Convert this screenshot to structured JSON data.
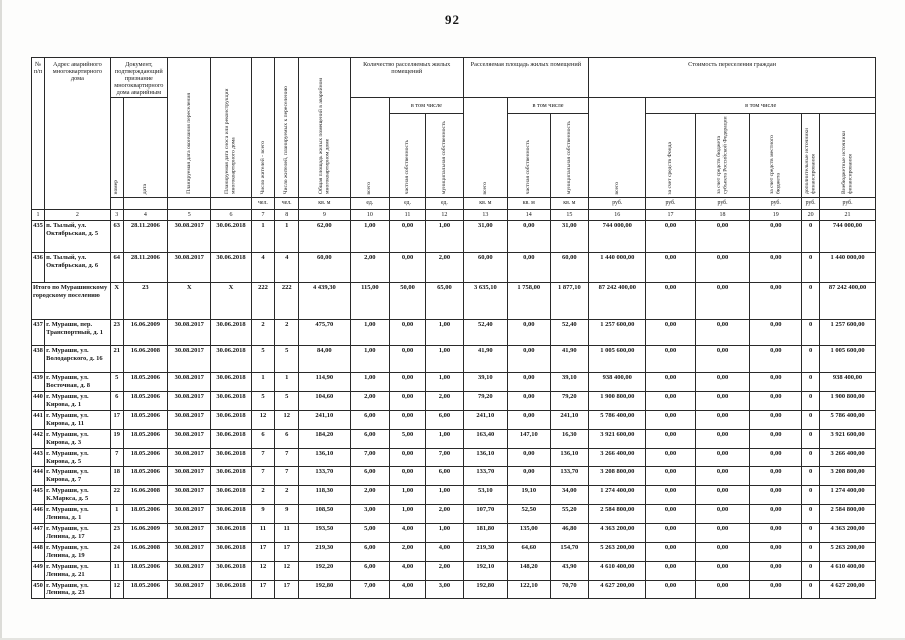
{
  "page": {
    "number": "92"
  },
  "table": {
    "header": {
      "num": "№ п/п",
      "address": "Адрес аварийного многоквартирного дома",
      "doc": "Документ, подтверждающий признание многоквартирного дома аварийным",
      "doc_no": "номер",
      "doc_date": "дата",
      "resettle_date": "Планируемая дата окончания переселения",
      "demolition_date": "Планируемая дата сноса или реконструкции многоквартирного дома",
      "residents": "Число жителей - всего",
      "residents_resettle": "Число жителей, планируемых к переселению",
      "house_area": "Общая площадь жилых помещений в аварийном многоквартирном доме",
      "units_group": "Количество расселяемых жилых помещений",
      "area_group": "Расселяемая площадь жилых помещений",
      "cost_group": "Стоимость переселения граждан",
      "total": "всего",
      "including": "в том числе",
      "private": "частная собственность",
      "municipal": "муниципальная собственность",
      "fund": "за счет средств Фонда",
      "region": "за счет средств бюджета субъекта Российской Федерации",
      "local": "за счет средств местного бюджета",
      "extra": "дополнительные источники финансирования",
      "offbudget": "Внебюджетные источники финансирования"
    },
    "units_row": [
      "",
      "",
      "",
      "",
      "чел.",
      "чел.",
      "кв. м",
      "ед.",
      "ед.",
      "ед.",
      "кв. м",
      "кв. м",
      "кв. м",
      "руб.",
      "руб.",
      "руб.",
      "руб.",
      "руб.",
      "руб."
    ],
    "col_numbers": [
      "1",
      "2",
      "3",
      "4",
      "5",
      "6",
      "7",
      "8",
      "9",
      "10",
      "11",
      "12",
      "13",
      "14",
      "15",
      "16",
      "17",
      "18",
      "19",
      "20",
      "21"
    ],
    "rows": [
      {
        "num": "435",
        "address": "п. Тылый, ул. Октябрьская, д. 5",
        "doc_no": "63",
        "doc_date": "28.11.2006",
        "resettle_date": "30.08.2017",
        "demolition_date": "30.06.2018",
        "residents": "1",
        "residents_resettle": "1",
        "house_area": "62,00",
        "units_total": "1,00",
        "units_private": "0,00",
        "units_municipal": "1,00",
        "area_total": "31,00",
        "area_private": "0,00",
        "area_municipal": "31,00",
        "cost_total": "744 000,00",
        "cost_fund": "0,00",
        "cost_region": "0,00",
        "cost_local": "0,00",
        "cost_extra": "0",
        "cost_offbudget": "744 000,00"
      },
      {
        "num": "436",
        "address": "п. Тылый, ул. Октябрьская, д. 6",
        "doc_no": "64",
        "doc_date": "28.11.2006",
        "resettle_date": "30.08.2017",
        "demolition_date": "30.06.2018",
        "residents": "4",
        "residents_resettle": "4",
        "house_area": "60,00",
        "units_total": "2,00",
        "units_private": "0,00",
        "units_municipal": "2,00",
        "area_total": "60,00",
        "area_private": "0,00",
        "area_municipal": "60,00",
        "cost_total": "1 440 000,00",
        "cost_fund": "0,00",
        "cost_region": "0,00",
        "cost_local": "0,00",
        "cost_extra": "0",
        "cost_offbudget": "1 440 000,00"
      },
      {
        "label": "Итого по Мурашинскому городскому поселению",
        "doc_no": "X",
        "doc_date": "23",
        "resettle_date": "X",
        "demolition_date": "X",
        "residents": "222",
        "residents_resettle": "222",
        "house_area": "4 439,30",
        "units_total": "115,00",
        "units_private": "50,00",
        "units_municipal": "65,00",
        "area_total": "3 635,10",
        "area_private": "1 758,00",
        "area_municipal": "1 877,10",
        "cost_total": "87 242 400,00",
        "cost_fund": "0,00",
        "cost_region": "0,00",
        "cost_local": "0,00",
        "cost_extra": "0",
        "cost_offbudget": "87 242 400,00"
      },
      {
        "num": "437",
        "address": "г. Мураши, пер. Транспортный, д. 1",
        "doc_no": "23",
        "doc_date": "16.06.2009",
        "resettle_date": "30.08.2017",
        "demolition_date": "30.06.2018",
        "residents": "2",
        "residents_resettle": "2",
        "house_area": "475,70",
        "units_total": "1,00",
        "units_private": "0,00",
        "units_municipal": "1,00",
        "area_total": "52,40",
        "area_private": "0,00",
        "area_municipal": "52,40",
        "cost_total": "1 257 600,00",
        "cost_fund": "0,00",
        "cost_region": "0,00",
        "cost_local": "0,00",
        "cost_extra": "0",
        "cost_offbudget": "1 257 600,00"
      },
      {
        "num": "438",
        "address": "г. Мураши, ул. Володарского, д. 16",
        "doc_no": "21",
        "doc_date": "16.06.2008",
        "resettle_date": "30.08.2017",
        "demolition_date": "30.06.2018",
        "residents": "5",
        "residents_resettle": "5",
        "house_area": "84,00",
        "units_total": "1,00",
        "units_private": "0,00",
        "units_municipal": "1,00",
        "area_total": "41,90",
        "area_private": "0,00",
        "area_municipal": "41,90",
        "cost_total": "1 005 600,00",
        "cost_fund": "0,00",
        "cost_region": "0,00",
        "cost_local": "0,00",
        "cost_extra": "0",
        "cost_offbudget": "1 005 600,00"
      },
      {
        "num": "439",
        "address": "г. Мураши, ул. Восточная, д. 8",
        "doc_no": "5",
        "doc_date": "18.05.2006",
        "resettle_date": "30.08.2017",
        "demolition_date": "30.06.2018",
        "residents": "1",
        "residents_resettle": "1",
        "house_area": "114,90",
        "units_total": "1,00",
        "units_private": "0,00",
        "units_municipal": "1,00",
        "area_total": "39,10",
        "area_private": "0,00",
        "area_municipal": "39,10",
        "cost_total": "938 400,00",
        "cost_fund": "0,00",
        "cost_region": "0,00",
        "cost_local": "0,00",
        "cost_extra": "0",
        "cost_offbudget": "938 400,00"
      },
      {
        "num": "440",
        "address": "г. Мураши, ул. Кирова, д. 1",
        "doc_no": "6",
        "doc_date": "18.05.2006",
        "resettle_date": "30.08.2017",
        "demolition_date": "30.06.2018",
        "residents": "5",
        "residents_resettle": "5",
        "house_area": "104,60",
        "units_total": "2,00",
        "units_private": "0,00",
        "units_municipal": "2,00",
        "area_total": "79,20",
        "area_private": "0,00",
        "area_municipal": "79,20",
        "cost_total": "1 900 800,00",
        "cost_fund": "0,00",
        "cost_region": "0,00",
        "cost_local": "0,00",
        "cost_extra": "0",
        "cost_offbudget": "1 900 800,00"
      },
      {
        "num": "441",
        "address": "г. Мураши, ул. Кирова, д. 11",
        "doc_no": "17",
        "doc_date": "18.05.2006",
        "resettle_date": "30.08.2017",
        "demolition_date": "30.06.2018",
        "residents": "12",
        "residents_resettle": "12",
        "house_area": "241,10",
        "units_total": "6,00",
        "units_private": "0,00",
        "units_municipal": "6,00",
        "area_total": "241,10",
        "area_private": "0,00",
        "area_municipal": "241,10",
        "cost_total": "5 786 400,00",
        "cost_fund": "0,00",
        "cost_region": "0,00",
        "cost_local": "0,00",
        "cost_extra": "0",
        "cost_offbudget": "5 786 400,00"
      },
      {
        "num": "442",
        "address": "г. Мураши, ул. Кирова, д. 3",
        "doc_no": "19",
        "doc_date": "18.05.2006",
        "resettle_date": "30.08.2017",
        "demolition_date": "30.06.2018",
        "residents": "6",
        "residents_resettle": "6",
        "house_area": "184,20",
        "units_total": "6,00",
        "units_private": "5,00",
        "units_municipal": "1,00",
        "area_total": "163,40",
        "area_private": "147,10",
        "area_municipal": "16,30",
        "cost_total": "3 921 600,00",
        "cost_fund": "0,00",
        "cost_region": "0,00",
        "cost_local": "0,00",
        "cost_extra": "0",
        "cost_offbudget": "3 921 600,00"
      },
      {
        "num": "443",
        "address": "г. Мураши, ул. Кирова, д. 5",
        "doc_no": "7",
        "doc_date": "18.05.2006",
        "resettle_date": "30.08.2017",
        "demolition_date": "30.06.2018",
        "residents": "7",
        "residents_resettle": "7",
        "house_area": "136,10",
        "units_total": "7,00",
        "units_private": "0,00",
        "units_municipal": "7,00",
        "area_total": "136,10",
        "area_private": "0,00",
        "area_municipal": "136,10",
        "cost_total": "3 266 400,00",
        "cost_fund": "0,00",
        "cost_region": "0,00",
        "cost_local": "0,00",
        "cost_extra": "0",
        "cost_offbudget": "3 266 400,00"
      },
      {
        "num": "444",
        "address": "г. Мураши, ул. Кирова, д. 7",
        "doc_no": "18",
        "doc_date": "18.05.2006",
        "resettle_date": "30.08.2017",
        "demolition_date": "30.06.2018",
        "residents": "7",
        "residents_resettle": "7",
        "house_area": "133,70",
        "units_total": "6,00",
        "units_private": "0,00",
        "units_municipal": "6,00",
        "area_total": "133,70",
        "area_private": "0,00",
        "area_municipal": "133,70",
        "cost_total": "3 208 800,00",
        "cost_fund": "0,00",
        "cost_region": "0,00",
        "cost_local": "0,00",
        "cost_extra": "0",
        "cost_offbudget": "3 208 800,00"
      },
      {
        "num": "445",
        "address": "г. Мураши, ул. К.Маркса, д. 5",
        "doc_no": "22",
        "doc_date": "16.06.2008",
        "resettle_date": "30.08.2017",
        "demolition_date": "30.06.2018",
        "residents": "2",
        "residents_resettle": "2",
        "house_area": "118,30",
        "units_total": "2,00",
        "units_private": "1,00",
        "units_municipal": "1,00",
        "area_total": "53,10",
        "area_private": "19,10",
        "area_municipal": "34,00",
        "cost_total": "1 274 400,00",
        "cost_fund": "0,00",
        "cost_region": "0,00",
        "cost_local": "0,00",
        "cost_extra": "0",
        "cost_offbudget": "1 274 400,00"
      },
      {
        "num": "446",
        "address": "г. Мураши, ул. Ленина, д. 1",
        "doc_no": "1",
        "doc_date": "18.05.2006",
        "resettle_date": "30.08.2017",
        "demolition_date": "30.06.2018",
        "residents": "9",
        "residents_resettle": "9",
        "house_area": "108,50",
        "units_total": "3,00",
        "units_private": "1,00",
        "units_municipal": "2,00",
        "area_total": "107,70",
        "area_private": "52,50",
        "area_municipal": "55,20",
        "cost_total": "2 584 800,00",
        "cost_fund": "0,00",
        "cost_region": "0,00",
        "cost_local": "0,00",
        "cost_extra": "0",
        "cost_offbudget": "2 584 800,00"
      },
      {
        "num": "447",
        "address": "г. Мураши, ул. Ленина, д. 17",
        "doc_no": "23",
        "doc_date": "16.06.2009",
        "resettle_date": "30.08.2017",
        "demolition_date": "30.06.2018",
        "residents": "11",
        "residents_resettle": "11",
        "house_area": "193,50",
        "units_total": "5,00",
        "units_private": "4,00",
        "units_municipal": "1,00",
        "area_total": "181,80",
        "area_private": "135,00",
        "area_municipal": "46,80",
        "cost_total": "4 363 200,00",
        "cost_fund": "0,00",
        "cost_region": "0,00",
        "cost_local": "0,00",
        "cost_extra": "0",
        "cost_offbudget": "4 363 200,00"
      },
      {
        "num": "448",
        "address": "г. Мураши, ул. Ленина, д. 19",
        "doc_no": "24",
        "doc_date": "16.06.2008",
        "resettle_date": "30.08.2017",
        "demolition_date": "30.06.2018",
        "residents": "17",
        "residents_resettle": "17",
        "house_area": "219,30",
        "units_total": "6,00",
        "units_private": "2,00",
        "units_municipal": "4,00",
        "area_total": "219,30",
        "area_private": "64,60",
        "area_municipal": "154,70",
        "cost_total": "5 263 200,00",
        "cost_fund": "0,00",
        "cost_region": "0,00",
        "cost_local": "0,00",
        "cost_extra": "0",
        "cost_offbudget": "5 263 200,00"
      },
      {
        "num": "449",
        "address": "г. Мураши, ул. Ленина, д. 21",
        "doc_no": "11",
        "doc_date": "18.05.2006",
        "resettle_date": "30.08.2017",
        "demolition_date": "30.06.2018",
        "residents": "12",
        "residents_resettle": "12",
        "house_area": "192,20",
        "units_total": "6,00",
        "units_private": "4,00",
        "units_municipal": "2,00",
        "area_total": "192,10",
        "area_private": "148,20",
        "area_municipal": "43,90",
        "cost_total": "4 610 400,00",
        "cost_fund": "0,00",
        "cost_region": "0,00",
        "cost_local": "0,00",
        "cost_extra": "0",
        "cost_offbudget": "4 610 400,00"
      },
      {
        "num": "450",
        "address": "г. Мураши, ул. Ленина, д. 23",
        "doc_no": "12",
        "doc_date": "18.05.2006",
        "resettle_date": "30.08.2017",
        "demolition_date": "30.06.2018",
        "residents": "17",
        "residents_resettle": "17",
        "house_area": "192,80",
        "units_total": "7,00",
        "units_private": "4,00",
        "units_municipal": "3,00",
        "area_total": "192,80",
        "area_private": "122,10",
        "area_municipal": "70,70",
        "cost_total": "4 627 200,00",
        "cost_fund": "0,00",
        "cost_region": "0,00",
        "cost_local": "0,00",
        "cost_extra": "0",
        "cost_offbudget": "4 627 200,00"
      }
    ]
  }
}
